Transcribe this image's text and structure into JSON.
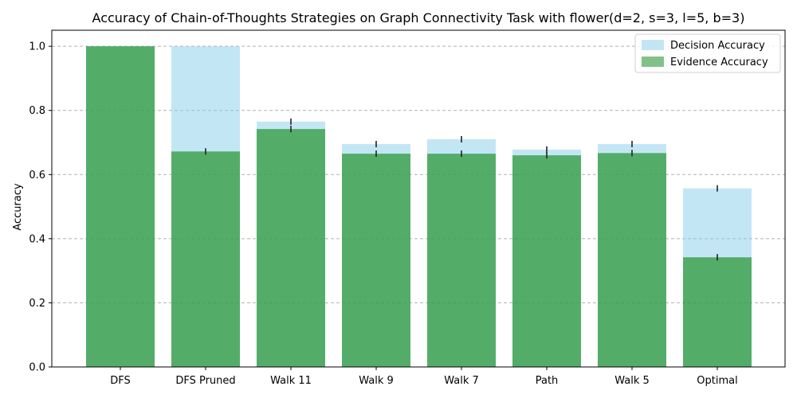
{
  "chart_data": {
    "type": "bar",
    "title": "Accuracy of Chain-of-Thoughts Strategies on Graph Connectivity Task with flower(d=2, s=3, l=5, b=3)",
    "xlabel": "",
    "ylabel": "Accuracy",
    "ylim": [
      0,
      1.05
    ],
    "yticks": [
      "0.0",
      "0.2",
      "0.4",
      "0.6",
      "0.8",
      "1.0"
    ],
    "grid": "y-dashed",
    "legend_position": "top-right",
    "categories": [
      "DFS",
      "DFS Pruned",
      "Walk 11",
      "Walk 9",
      "Walk 7",
      "Path",
      "Walk 5",
      "Optimal"
    ],
    "series": [
      {
        "name": "Decision Accuracy",
        "color": "#87CEEB",
        "values": [
          1.0,
          1.0,
          0.765,
          0.695,
          0.71,
          0.678,
          0.695,
          0.557
        ],
        "errors": [
          0,
          0,
          0.01,
          0.01,
          0.01,
          0.01,
          0.01,
          0.01
        ]
      },
      {
        "name": "Evidence Accuracy",
        "color": "#2E9A3A",
        "values": [
          1.0,
          0.672,
          0.742,
          0.665,
          0.665,
          0.66,
          0.667,
          0.342
        ],
        "errors": [
          0,
          0.01,
          0.01,
          0.01,
          0.01,
          0.01,
          0.01,
          0.01
        ]
      }
    ]
  }
}
